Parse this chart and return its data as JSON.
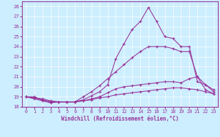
{
  "xlabel": "Windchill (Refroidissement éolien,°C)",
  "bg_color": "#cceeff",
  "line_color": "#993399",
  "grid_color": "#ffffff",
  "xlim": [
    -0.5,
    23.5
  ],
  "ylim": [
    18,
    28.5
  ],
  "yticks": [
    18,
    19,
    20,
    21,
    22,
    23,
    24,
    25,
    26,
    27,
    28
  ],
  "xticks": [
    0,
    1,
    2,
    3,
    4,
    5,
    6,
    7,
    8,
    9,
    10,
    11,
    12,
    13,
    14,
    15,
    16,
    17,
    18,
    19,
    20,
    21,
    22,
    23
  ],
  "series": [
    [
      19.0,
      19.0,
      18.7,
      18.5,
      18.5,
      18.5,
      18.5,
      18.7,
      19.1,
      19.5,
      20.2,
      22.8,
      24.3,
      25.7,
      26.5,
      27.9,
      26.5,
      25.0,
      24.8,
      24.0,
      24.0,
      20.5,
      20.2,
      19.5
    ],
    [
      19.0,
      18.8,
      18.6,
      18.4,
      18.5,
      18.5,
      18.5,
      19.0,
      19.5,
      20.1,
      20.8,
      21.5,
      22.2,
      22.9,
      23.5,
      24.0,
      24.0,
      24.0,
      23.8,
      23.5,
      23.5,
      21.0,
      20.2,
      19.7
    ],
    [
      19.0,
      18.9,
      18.7,
      18.5,
      18.5,
      18.5,
      18.5,
      18.6,
      18.8,
      19.0,
      19.4,
      19.8,
      20.0,
      20.1,
      20.2,
      20.3,
      20.4,
      20.5,
      20.5,
      20.4,
      20.8,
      21.0,
      19.7,
      19.3
    ],
    [
      19.0,
      18.9,
      18.8,
      18.6,
      18.5,
      18.5,
      18.5,
      18.6,
      18.7,
      18.9,
      19.0,
      19.2,
      19.3,
      19.4,
      19.5,
      19.6,
      19.7,
      19.8,
      19.9,
      19.9,
      19.8,
      19.7,
      19.5,
      19.3
    ]
  ],
  "xlabel_fontsize": 5.5,
  "tick_fontsize": 5,
  "linewidth": 0.8,
  "markersize": 3
}
